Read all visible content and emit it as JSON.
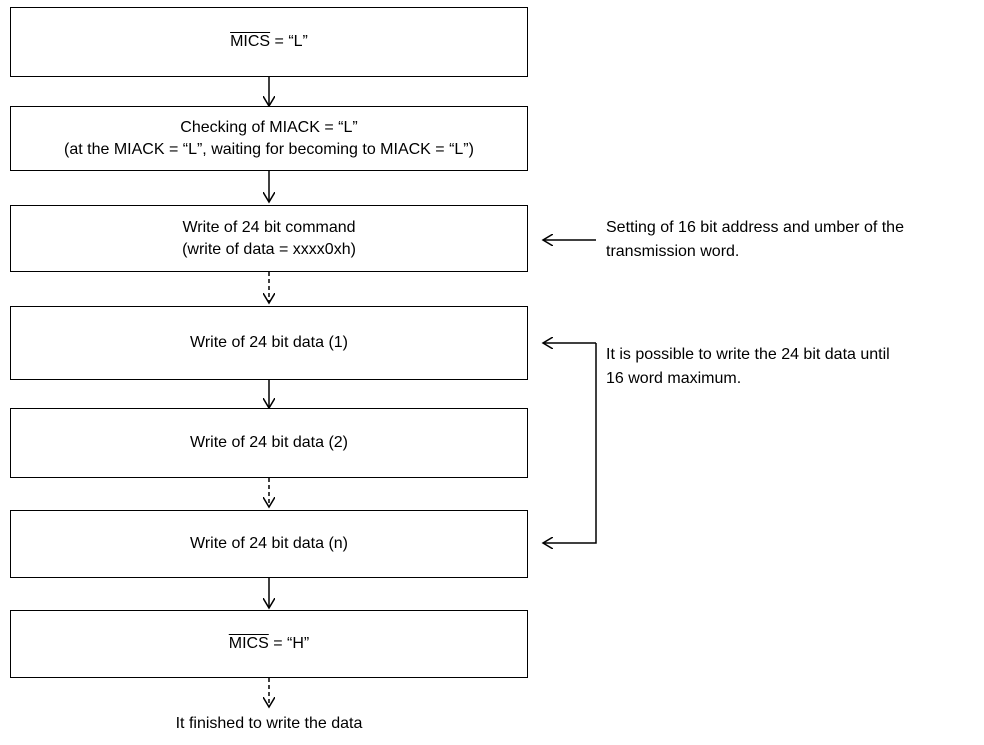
{
  "steps": [
    {
      "signal": "MICS",
      "text": " = “L”"
    },
    {
      "line1": "Checking of MIACK = “L”",
      "line2": "(at the MIACK = “L”, waiting for becoming to MIACK = “L”)"
    },
    {
      "line1": "Write of 24 bit command",
      "line2": "(write of data = xxxx0xh)"
    },
    {
      "text": "Write of 24 bit data (1)"
    },
    {
      "text": "Write of 24 bit data (2)"
    },
    {
      "text": "Write of 24 bit data (n)"
    },
    {
      "signal": "MICS",
      "text": " = “H”"
    }
  ],
  "notes": {
    "command": {
      "line1": "Setting of 16 bit address and umber of the",
      "line2": "transmission word."
    },
    "data": {
      "line1": "It is possible to write the 24 bit data until",
      "line2": "16 word maximum."
    }
  },
  "end_text": "It finished to write the data"
}
